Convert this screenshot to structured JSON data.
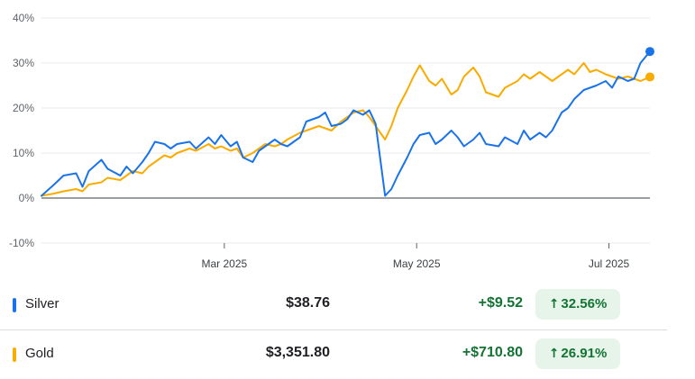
{
  "chart_data": {
    "type": "line",
    "y_ticks": [
      "40%",
      "30%",
      "20%",
      "10%",
      "0%",
      "-10%"
    ],
    "y_values": [
      40,
      30,
      20,
      10,
      0,
      -10
    ],
    "x_ticks": [
      {
        "label": "Mar 2025",
        "date": "2025-03-01"
      },
      {
        "label": "May 2025",
        "date": "2025-05-01"
      },
      {
        "label": "Jul 2025",
        "date": "2025-07-01"
      }
    ],
    "x_range": [
      "2025-01-02",
      "2025-07-14"
    ],
    "ylim": [
      -10,
      40
    ],
    "series": [
      {
        "name": "Silver",
        "color": "#1a73e8",
        "points": [
          [
            "2025-01-02",
            0.5
          ],
          [
            "2025-01-06",
            3
          ],
          [
            "2025-01-09",
            5
          ],
          [
            "2025-01-13",
            5.5
          ],
          [
            "2025-01-15",
            2.5
          ],
          [
            "2025-01-17",
            6
          ],
          [
            "2025-01-21",
            8.5
          ],
          [
            "2025-01-23",
            6.5
          ],
          [
            "2025-01-27",
            5
          ],
          [
            "2025-01-29",
            7
          ],
          [
            "2025-01-31",
            5.5
          ],
          [
            "2025-02-03",
            8
          ],
          [
            "2025-02-05",
            10
          ],
          [
            "2025-02-07",
            12.5
          ],
          [
            "2025-02-10",
            12
          ],
          [
            "2025-02-12",
            11
          ],
          [
            "2025-02-14",
            12
          ],
          [
            "2025-02-18",
            12.5
          ],
          [
            "2025-02-20",
            11
          ],
          [
            "2025-02-24",
            13.5
          ],
          [
            "2025-02-26",
            12
          ],
          [
            "2025-02-28",
            14
          ],
          [
            "2025-03-03",
            11.5
          ],
          [
            "2025-03-05",
            12.5
          ],
          [
            "2025-03-07",
            9
          ],
          [
            "2025-03-10",
            8
          ],
          [
            "2025-03-12",
            10.5
          ],
          [
            "2025-03-14",
            11.5
          ],
          [
            "2025-03-17",
            13
          ],
          [
            "2025-03-19",
            12
          ],
          [
            "2025-03-21",
            11.5
          ],
          [
            "2025-03-25",
            13.5
          ],
          [
            "2025-03-27",
            17
          ],
          [
            "2025-03-31",
            18
          ],
          [
            "2025-04-02",
            19
          ],
          [
            "2025-04-04",
            16
          ],
          [
            "2025-04-07",
            16.5
          ],
          [
            "2025-04-09",
            17.5
          ],
          [
            "2025-04-11",
            19.5
          ],
          [
            "2025-04-14",
            18.5
          ],
          [
            "2025-04-16",
            19.5
          ],
          [
            "2025-04-18",
            16.5
          ],
          [
            "2025-04-21",
            0.5
          ],
          [
            "2025-04-23",
            2
          ],
          [
            "2025-04-25",
            5
          ],
          [
            "2025-04-28",
            9
          ],
          [
            "2025-04-30",
            12
          ],
          [
            "2025-05-02",
            14
          ],
          [
            "2025-05-05",
            14.5
          ],
          [
            "2025-05-07",
            12
          ],
          [
            "2025-05-09",
            13
          ],
          [
            "2025-05-12",
            15
          ],
          [
            "2025-05-14",
            13.5
          ],
          [
            "2025-05-16",
            11.5
          ],
          [
            "2025-05-19",
            13
          ],
          [
            "2025-05-21",
            14.5
          ],
          [
            "2025-05-23",
            12
          ],
          [
            "2025-05-27",
            11.5
          ],
          [
            "2025-05-29",
            13.5
          ],
          [
            "2025-06-02",
            12
          ],
          [
            "2025-06-04",
            15
          ],
          [
            "2025-06-06",
            13
          ],
          [
            "2025-06-09",
            14.5
          ],
          [
            "2025-06-11",
            13.5
          ],
          [
            "2025-06-13",
            15
          ],
          [
            "2025-06-16",
            19
          ],
          [
            "2025-06-18",
            20
          ],
          [
            "2025-06-20",
            22
          ],
          [
            "2025-06-23",
            24
          ],
          [
            "2025-06-25",
            24.5
          ],
          [
            "2025-06-27",
            25
          ],
          [
            "2025-06-30",
            26
          ],
          [
            "2025-07-02",
            24.5
          ],
          [
            "2025-07-04",
            27
          ],
          [
            "2025-07-07",
            26
          ],
          [
            "2025-07-09",
            26.5
          ],
          [
            "2025-07-11",
            30
          ],
          [
            "2025-07-14",
            32.56
          ]
        ]
      },
      {
        "name": "Gold",
        "color": "#f9ab00",
        "points": [
          [
            "2025-01-02",
            0.5
          ],
          [
            "2025-01-06",
            1
          ],
          [
            "2025-01-09",
            1.5
          ],
          [
            "2025-01-13",
            2
          ],
          [
            "2025-01-15",
            1.5
          ],
          [
            "2025-01-17",
            3
          ],
          [
            "2025-01-21",
            3.5
          ],
          [
            "2025-01-23",
            4.5
          ],
          [
            "2025-01-27",
            4
          ],
          [
            "2025-01-29",
            5
          ],
          [
            "2025-01-31",
            6
          ],
          [
            "2025-02-03",
            5.5
          ],
          [
            "2025-02-05",
            7
          ],
          [
            "2025-02-07",
            8
          ],
          [
            "2025-02-10",
            9.5
          ],
          [
            "2025-02-12",
            9
          ],
          [
            "2025-02-14",
            10
          ],
          [
            "2025-02-18",
            11
          ],
          [
            "2025-02-20",
            10.5
          ],
          [
            "2025-02-24",
            12
          ],
          [
            "2025-02-26",
            11
          ],
          [
            "2025-02-28",
            11.5
          ],
          [
            "2025-03-03",
            10.5
          ],
          [
            "2025-03-05",
            11
          ],
          [
            "2025-03-07",
            9
          ],
          [
            "2025-03-10",
            10
          ],
          [
            "2025-03-12",
            11
          ],
          [
            "2025-03-14",
            12
          ],
          [
            "2025-03-17",
            11.5
          ],
          [
            "2025-03-19",
            12
          ],
          [
            "2025-03-21",
            13
          ],
          [
            "2025-03-25",
            14.5
          ],
          [
            "2025-03-27",
            15
          ],
          [
            "2025-03-31",
            16
          ],
          [
            "2025-04-02",
            15.5
          ],
          [
            "2025-04-04",
            15
          ],
          [
            "2025-04-07",
            17
          ],
          [
            "2025-04-09",
            18
          ],
          [
            "2025-04-11",
            19
          ],
          [
            "2025-04-14",
            19.5
          ],
          [
            "2025-04-16",
            18
          ],
          [
            "2025-04-18",
            16
          ],
          [
            "2025-04-21",
            13
          ],
          [
            "2025-04-23",
            16
          ],
          [
            "2025-04-25",
            20
          ],
          [
            "2025-04-28",
            24
          ],
          [
            "2025-04-30",
            27
          ],
          [
            "2025-05-02",
            29.5
          ],
          [
            "2025-05-05",
            26
          ],
          [
            "2025-05-07",
            25
          ],
          [
            "2025-05-09",
            26.5
          ],
          [
            "2025-05-12",
            23
          ],
          [
            "2025-05-14",
            24
          ],
          [
            "2025-05-16",
            27
          ],
          [
            "2025-05-19",
            29
          ],
          [
            "2025-05-21",
            27
          ],
          [
            "2025-05-23",
            23.5
          ],
          [
            "2025-05-27",
            22.5
          ],
          [
            "2025-05-29",
            24.5
          ],
          [
            "2025-06-02",
            26
          ],
          [
            "2025-06-04",
            27.5
          ],
          [
            "2025-06-06",
            26.5
          ],
          [
            "2025-06-09",
            28
          ],
          [
            "2025-06-11",
            27
          ],
          [
            "2025-06-13",
            26
          ],
          [
            "2025-06-16",
            27.5
          ],
          [
            "2025-06-18",
            28.5
          ],
          [
            "2025-06-20",
            27.5
          ],
          [
            "2025-06-23",
            30
          ],
          [
            "2025-06-25",
            28
          ],
          [
            "2025-06-27",
            28.5
          ],
          [
            "2025-06-30",
            27.5
          ],
          [
            "2025-07-02",
            27
          ],
          [
            "2025-07-04",
            26.5
          ],
          [
            "2025-07-07",
            27
          ],
          [
            "2025-07-09",
            26.5
          ],
          [
            "2025-07-11",
            26
          ],
          [
            "2025-07-14",
            26.91
          ]
        ]
      }
    ],
    "grid": true,
    "legend": "bottom"
  },
  "legend_rows": [
    {
      "name": "Silver",
      "color": "#1a73e8",
      "price": "$38.76",
      "change": "+$9.52",
      "arrow": "↑",
      "percent": "32.56%"
    },
    {
      "name": "Gold",
      "color": "#f9ab00",
      "price": "$3,351.80",
      "change": "+$710.80",
      "arrow": "↑",
      "percent": "26.91%"
    }
  ]
}
